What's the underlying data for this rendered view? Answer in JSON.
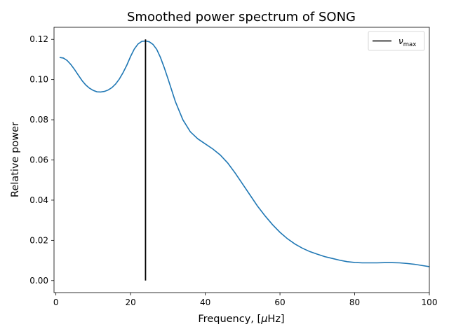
{
  "chart_data": {
    "type": "line",
    "title": "Smoothed power spectrum of SONG",
    "xlabel_prefix": "Frequency, [",
    "xlabel_mu": "μ",
    "xlabel_suffix": "Hz]",
    "ylabel": "Relative power",
    "xlim": [
      -0.5,
      100
    ],
    "ylim": [
      -0.006,
      0.126
    ],
    "xticks": [
      0,
      20,
      40,
      60,
      80,
      100
    ],
    "yticks": [
      0.0,
      0.02,
      0.04,
      0.06,
      0.08,
      0.1,
      0.12
    ],
    "xtick_labels": [
      "0",
      "20",
      "40",
      "60",
      "80",
      "100"
    ],
    "ytick_labels": [
      "0.00",
      "0.02",
      "0.04",
      "0.06",
      "0.08",
      "0.10",
      "0.12"
    ],
    "grid": false,
    "legend_position": "top-right",
    "series": [
      {
        "color": "#1f77b4",
        "x": [
          1,
          2,
          3,
          4,
          5,
          6,
          7,
          8,
          9,
          10,
          11,
          12,
          13,
          14,
          15,
          16,
          17,
          18,
          19,
          20,
          21,
          22,
          23,
          24,
          25,
          26,
          27,
          28,
          29,
          30,
          32,
          34,
          36,
          38,
          40,
          42,
          44,
          46,
          48,
          50,
          52,
          54,
          56,
          58,
          60,
          62,
          64,
          66,
          68,
          70,
          72,
          74,
          76,
          78,
          80,
          82,
          84,
          86,
          88,
          90,
          92,
          94,
          96,
          98,
          100
        ],
        "y": [
          0.111,
          0.1107,
          0.1095,
          0.1075,
          0.105,
          0.1022,
          0.0995,
          0.0973,
          0.0957,
          0.0946,
          0.0939,
          0.0938,
          0.0941,
          0.0948,
          0.096,
          0.0978,
          0.1003,
          0.1035,
          0.1072,
          0.1115,
          0.1152,
          0.1177,
          0.119,
          0.1192,
          0.1188,
          0.1175,
          0.115,
          0.111,
          0.106,
          0.1005,
          0.089,
          0.08,
          0.074,
          0.0705,
          0.068,
          0.0655,
          0.0625,
          0.0585,
          0.0535,
          0.048,
          0.0425,
          0.037,
          0.0322,
          0.0278,
          0.024,
          0.0208,
          0.0182,
          0.0161,
          0.0144,
          0.0131,
          0.0119,
          0.011,
          0.0101,
          0.0094,
          0.009,
          0.0088,
          0.0088,
          0.0088,
          0.0089,
          0.0089,
          0.0088,
          0.0085,
          0.0081,
          0.0075,
          0.0069
        ]
      }
    ],
    "vline": {
      "x": 24,
      "y_range": [
        0.0,
        0.12
      ],
      "color": "#000000"
    },
    "legend": {
      "entries": [
        {
          "label": "ν",
          "label_sub": "max",
          "color": "#000000"
        }
      ]
    }
  }
}
